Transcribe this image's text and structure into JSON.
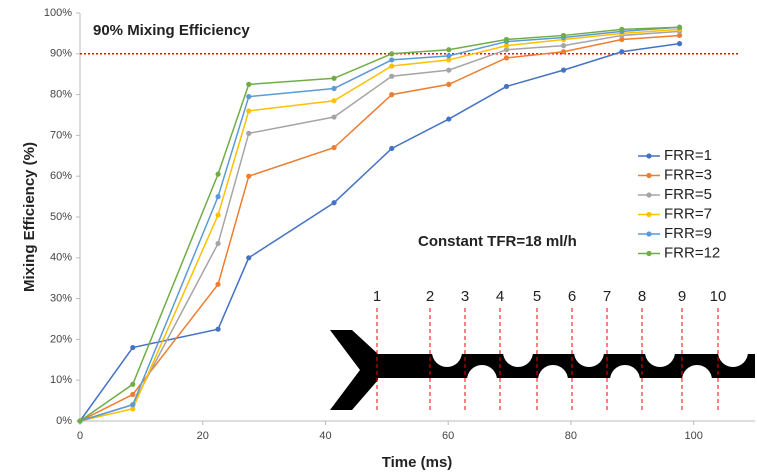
{
  "chart_data": {
    "type": "line",
    "x_label": "Time (ms)",
    "y_label": "Mixing Efficiency (%)",
    "annotations": [
      "90% Mixing Efficiency",
      "Constant TFR=18 ml/h"
    ],
    "stage_labels": [
      "1",
      "2",
      "3",
      "4",
      "5",
      "6",
      "7",
      "8",
      "9",
      "10"
    ],
    "threshold": {
      "value": 90,
      "color": "#ff0000"
    },
    "x": [
      0,
      8.6,
      22.5,
      27.5,
      41.4,
      50.8,
      60.1,
      69.5,
      78.8,
      88.3,
      97.7
    ],
    "series": [
      {
        "name": "FRR=1",
        "color": "#4472c4",
        "values": [
          0,
          18,
          22.5,
          40,
          53.5,
          66.8,
          74,
          82,
          86,
          90.5,
          92.5
        ]
      },
      {
        "name": "FRR=3",
        "color": "#ed7d31",
        "values": [
          0,
          6.5,
          33.5,
          60,
          67,
          80,
          82.5,
          89,
          90.5,
          93.5,
          94.5
        ]
      },
      {
        "name": "FRR=5",
        "color": "#a5a5a5",
        "values": [
          0,
          4,
          43.5,
          70.5,
          74.5,
          84.5,
          86,
          91,
          92,
          94.5,
          95.5
        ]
      },
      {
        "name": "FRR=7",
        "color": "#ffc000",
        "values": [
          0,
          3,
          50.5,
          76,
          78.5,
          87,
          88.5,
          92,
          93.5,
          95,
          96
        ]
      },
      {
        "name": "FRR=9",
        "color": "#5b9bd5",
        "values": [
          0,
          4,
          55,
          79.5,
          81.5,
          88.5,
          89.5,
          93,
          94,
          95.5,
          96.5
        ]
      },
      {
        "name": "FRR=12",
        "color": "#70ad47",
        "values": [
          0,
          9,
          60.5,
          82.5,
          84,
          90,
          91,
          93.5,
          94.5,
          96,
          96.5
        ]
      }
    ],
    "xlim": [
      0,
      110
    ],
    "ylim": [
      0,
      100
    ],
    "xticks": [
      0,
      20,
      40,
      60,
      80,
      100
    ],
    "yticks": [
      {
        "value": 0,
        "label": "0%"
      },
      {
        "value": 10,
        "label": "10%"
      },
      {
        "value": 20,
        "label": "20%"
      },
      {
        "value": 30,
        "label": "30%"
      },
      {
        "value": 40,
        "label": "40%"
      },
      {
        "value": 50,
        "label": "50%"
      },
      {
        "value": 60,
        "label": "60%"
      },
      {
        "value": 70,
        "label": "70%"
      },
      {
        "value": 80,
        "label": "80%"
      },
      {
        "value": 90,
        "label": "90%"
      },
      {
        "value": 100,
        "label": "100%"
      }
    ],
    "legend": "right",
    "grid": false
  }
}
